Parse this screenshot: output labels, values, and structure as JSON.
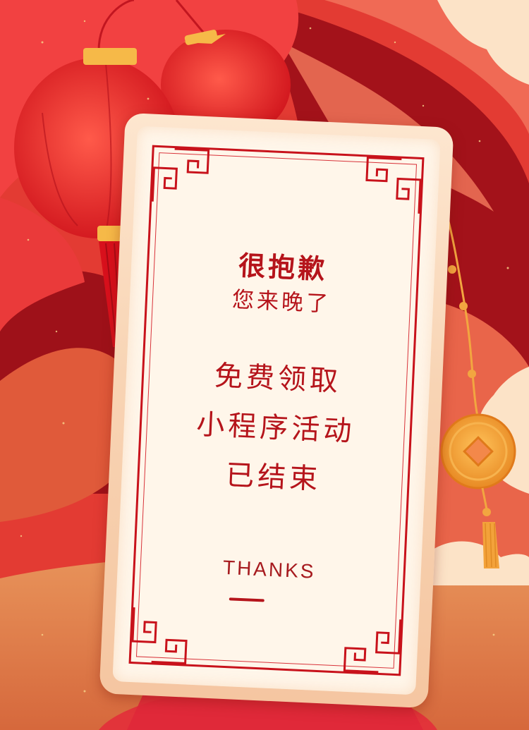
{
  "message": {
    "line1": "很抱歉",
    "line2": "您来晚了",
    "line3": "免费领取",
    "line4": "小程序活动",
    "line5": "已结束"
  },
  "footer": {
    "thanks": "THANKS"
  },
  "colors": {
    "background": "#e23a32",
    "accent_red": "#c8121b",
    "gold": "#f2a640",
    "cream": "#fff6ea"
  },
  "icons": [
    "lantern-icon",
    "coin-icon",
    "cloud-icon",
    "corner-ornament-icon"
  ]
}
